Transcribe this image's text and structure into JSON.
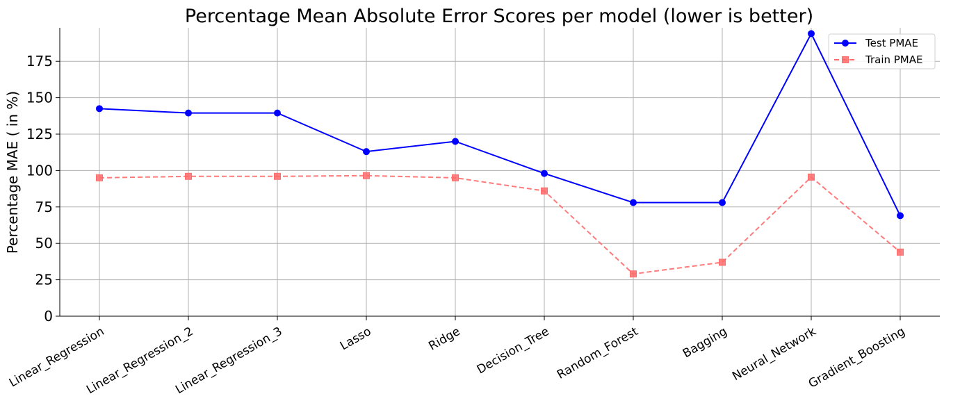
{
  "chart_data": {
    "type": "line",
    "title": "Percentage Mean Absolute Error Scores per model (lower is better)",
    "xlabel": "",
    "ylabel": "Percentage MAE ( in %)",
    "categories": [
      "Linear_Regression",
      "Linear_Regression_2",
      "Linear_Regression_3",
      "Lasso",
      "Ridge",
      "Decision_Tree",
      "Random_Forest",
      "Bagging",
      "Neural_Network",
      "Gradient_Boosting"
    ],
    "series": [
      {
        "name": "Test PMAE",
        "values": [
          142.5,
          139.5,
          139.5,
          113,
          120,
          98,
          78,
          78,
          194,
          69
        ],
        "color": "#0000ff",
        "style": "solid",
        "marker": "circle"
      },
      {
        "name": "Train PMAE",
        "values": [
          95,
          96,
          96,
          96.5,
          95,
          86,
          29,
          37,
          95.5,
          44
        ],
        "color": "#ff6b6b",
        "style": "dashed",
        "marker": "square"
      }
    ],
    "ylim": [
      0,
      198
    ],
    "yticks": [
      0,
      25,
      50,
      75,
      100,
      125,
      150,
      175
    ],
    "grid": true,
    "legend_position": "top-right"
  }
}
